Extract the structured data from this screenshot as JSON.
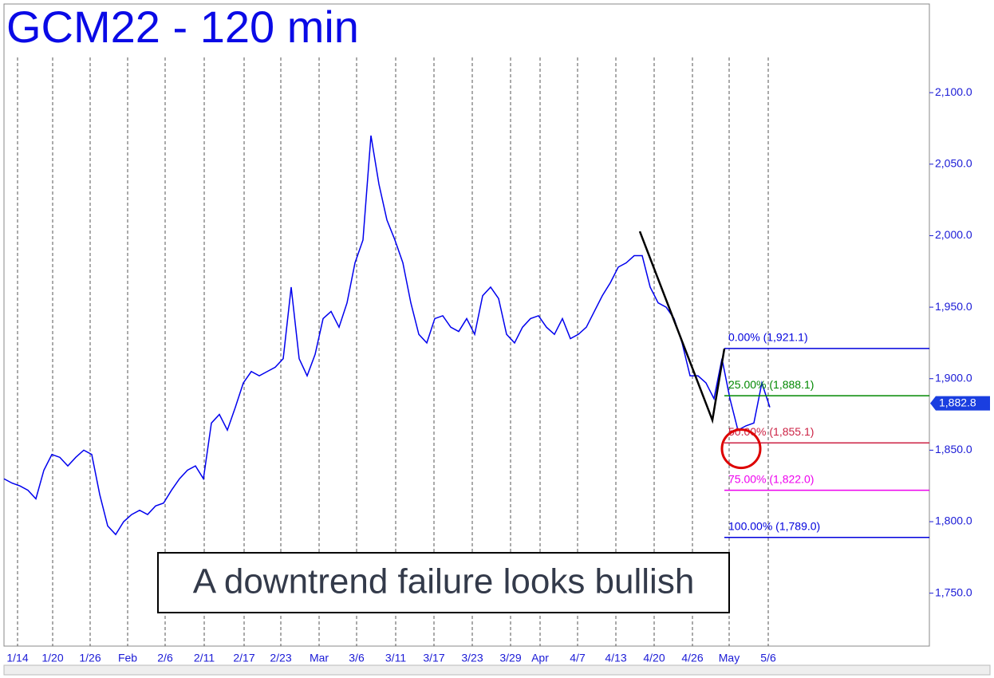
{
  "chart_data": {
    "type": "line",
    "title": "GCM22 - 120 min",
    "annotation": "A downtrend failure looks bullish",
    "x": [
      0,
      1,
      2,
      3,
      4,
      5,
      6,
      7,
      8,
      9,
      10,
      11,
      12,
      13,
      14,
      15,
      16,
      17,
      18,
      19,
      20,
      21,
      22,
      23,
      24,
      25,
      26,
      27,
      28,
      29,
      30,
      31,
      32,
      33,
      34,
      35,
      36,
      37,
      38,
      39,
      40,
      41,
      42,
      43,
      44,
      45,
      46,
      47,
      48,
      49,
      50,
      51,
      52,
      53,
      54,
      55,
      56,
      57,
      58,
      59,
      60,
      61,
      62,
      63,
      64,
      65,
      66,
      67,
      68,
      69,
      70,
      71,
      72,
      73,
      74,
      75,
      76,
      77,
      78,
      79,
      80,
      81,
      82,
      83,
      84,
      85,
      86,
      87,
      88,
      89,
      90,
      91,
      92,
      93,
      94,
      95,
      96
    ],
    "series": [
      {
        "name": "GCM22",
        "color": "#0000ee",
        "values": [
          1830,
          1827,
          1825,
          1822,
          1816,
          1836,
          1847,
          1845,
          1839,
          1845,
          1850,
          1847,
          1819,
          1797,
          1791,
          1800,
          1805,
          1808,
          1805,
          1811,
          1813,
          1822,
          1830,
          1836,
          1839,
          1830,
          1869,
          1875,
          1864,
          1880,
          1897,
          1905,
          1902,
          1905,
          1908,
          1914,
          1964,
          1914,
          1902,
          1917,
          1942,
          1947,
          1936,
          1953,
          1981,
          1997,
          2070,
          2036,
          2011,
          1997,
          1981,
          1953,
          1931,
          1925,
          1942,
          1944,
          1936,
          1933,
          1942,
          1931,
          1958,
          1964,
          1956,
          1931,
          1925,
          1936,
          1942,
          1944,
          1936,
          1931,
          1942,
          1928,
          1931,
          1936,
          1947,
          1958,
          1967,
          1978,
          1981,
          1986,
          1986,
          1964,
          1953,
          1950,
          1942,
          1925,
          1902,
          1902,
          1897,
          1886,
          1914,
          1886,
          1864,
          1867,
          1869,
          1897,
          1880
        ]
      }
    ],
    "last_price": {
      "value": 1882.8,
      "label": "1,882.8"
    },
    "xlim": [
      0,
      116
    ],
    "xticks": [
      {
        "value": 1.7,
        "label": "1/14"
      },
      {
        "value": 6.1,
        "label": "1/20"
      },
      {
        "value": 10.8,
        "label": "1/26"
      },
      {
        "value": 15.5,
        "label": "Feb"
      },
      {
        "value": 20.2,
        "label": "2/6"
      },
      {
        "value": 25.1,
        "label": "2/11"
      },
      {
        "value": 30.1,
        "label": "2/17"
      },
      {
        "value": 34.7,
        "label": "2/23"
      },
      {
        "value": 39.5,
        "label": "Mar"
      },
      {
        "value": 44.2,
        "label": "3/6"
      },
      {
        "value": 49.1,
        "label": "3/11"
      },
      {
        "value": 53.9,
        "label": "3/17"
      },
      {
        "value": 58.7,
        "label": "3/23"
      },
      {
        "value": 63.5,
        "label": "3/29"
      },
      {
        "value": 67.2,
        "label": "Apr"
      },
      {
        "value": 71.9,
        "label": "4/7"
      },
      {
        "value": 76.7,
        "label": "4/13"
      },
      {
        "value": 81.5,
        "label": "4/20"
      },
      {
        "value": 86.3,
        "label": "4/26"
      },
      {
        "value": 90.9,
        "label": "May"
      },
      {
        "value": 95.8,
        "label": "5/6"
      }
    ],
    "ylim": [
      1713,
      2162
    ],
    "yticks": [
      {
        "value": 1750,
        "label": "1,750.0"
      },
      {
        "value": 1800,
        "label": "1,800.0"
      },
      {
        "value": 1850,
        "label": "1,850.0"
      },
      {
        "value": 1900,
        "label": "1,900.0"
      },
      {
        "value": 1950,
        "label": "1,950.0"
      },
      {
        "value": 2000,
        "label": "2,000.0"
      },
      {
        "value": 2050,
        "label": "2,050.0"
      },
      {
        "value": 2100,
        "label": "2,100.0"
      }
    ],
    "trend_line": {
      "color": "#000000",
      "x": [
        79.7,
        88.8,
        90.3
      ],
      "values": [
        2003,
        1871,
        1921
      ]
    },
    "circle": {
      "color": "#dd0000",
      "x": 92.4,
      "value": 1851
    },
    "fib_start": 90.3,
    "fib_levels": [
      {
        "label": "0.00% (1,921.1)",
        "value": 1921.1,
        "color": "#0000dd"
      },
      {
        "label": "25.00% (1,888.1)",
        "value": 1888.1,
        "color": "#008800"
      },
      {
        "label": "50.00% (1,855.1)",
        "value": 1855.1,
        "color": "#cc2244"
      },
      {
        "label": "75.00% (1,822.0)",
        "value": 1822.0,
        "color": "#ee00ee"
      },
      {
        "label": "100.00% (1,789.0)",
        "value": 1789.0,
        "color": "#0000dd"
      }
    ]
  }
}
